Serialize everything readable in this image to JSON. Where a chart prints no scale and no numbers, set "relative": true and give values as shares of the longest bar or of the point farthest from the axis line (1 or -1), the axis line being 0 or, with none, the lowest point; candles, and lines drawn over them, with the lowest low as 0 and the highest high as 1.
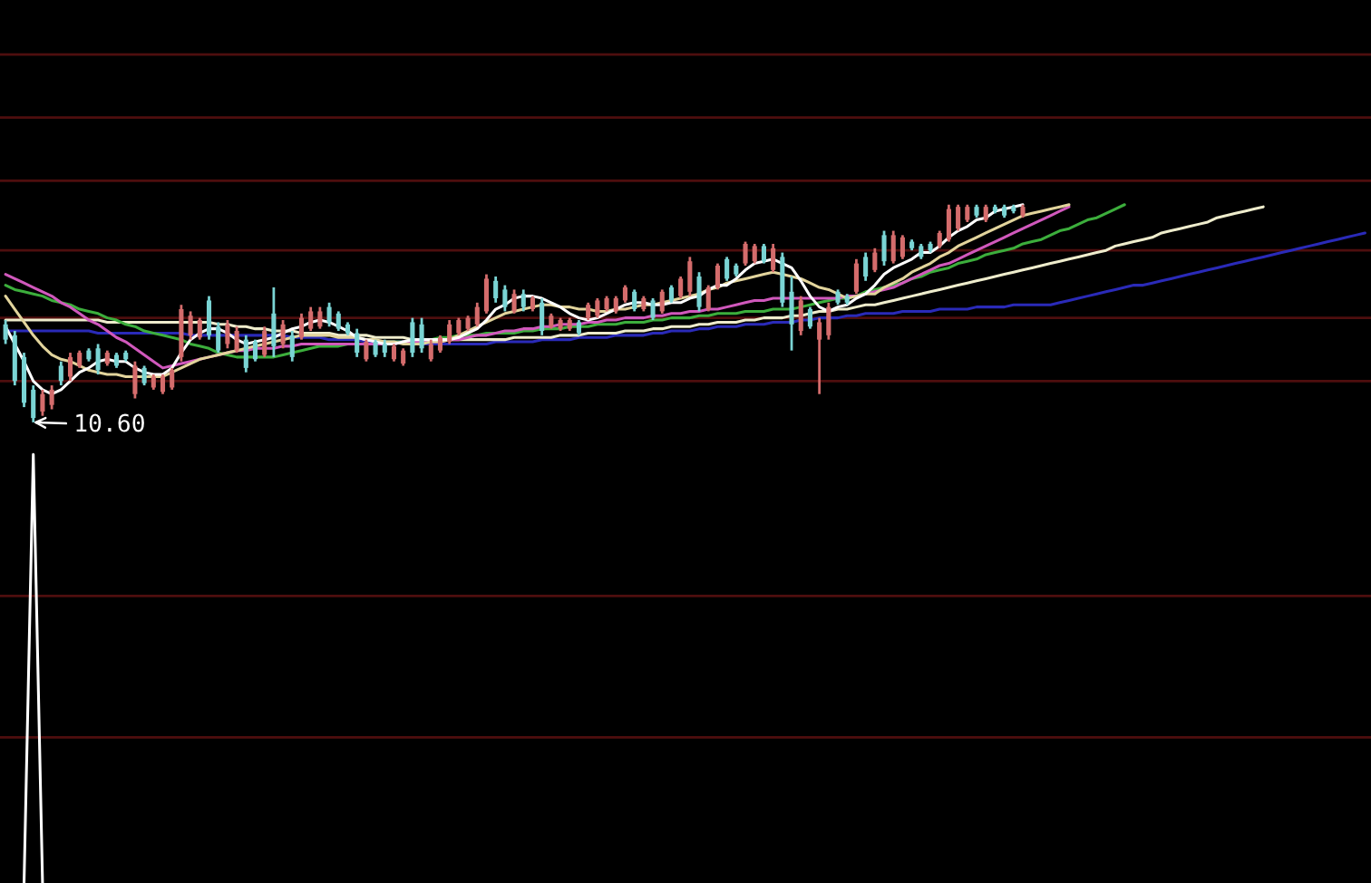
{
  "chart_data": [
    {
      "type": "candlestick",
      "relative": true,
      "categories": [
        null,
        null,
        null,
        null,
        null,
        null,
        null,
        null,
        null,
        null,
        null,
        null,
        null,
        null,
        null,
        null,
        null,
        null,
        null,
        null,
        null,
        null,
        null,
        null,
        null,
        null,
        null,
        null,
        null,
        null,
        null,
        null,
        null,
        null,
        null,
        null,
        null,
        null,
        null,
        null,
        null,
        null,
        null,
        null,
        null,
        null,
        null,
        null,
        null,
        null,
        null,
        null,
        null,
        null,
        null,
        null,
        null,
        null,
        null,
        null,
        null,
        null,
        null,
        null,
        null,
        null,
        null,
        null,
        null,
        null,
        null,
        null,
        null,
        null,
        null,
        null,
        null,
        null,
        null,
        null,
        null,
        null,
        null,
        null,
        null,
        null,
        null,
        null,
        null,
        null,
        null,
        null,
        null,
        null,
        null,
        null,
        null,
        null,
        null,
        null,
        null,
        null,
        null,
        null,
        null,
        null,
        null,
        null,
        null,
        null,
        null,
        null,
        null,
        null,
        null,
        null,
        null,
        null,
        null,
        null,
        null,
        null,
        null,
        null,
        null,
        null,
        null,
        null,
        null,
        null,
        null,
        null,
        null,
        null,
        null,
        null,
        null,
        null,
        null,
        null,
        null,
        null,
        null,
        null,
        null,
        null,
        null,
        null
      ],
      "ohlc": [
        [
          0.45,
          0.47,
          0.36,
          0.38
        ],
        [
          0.4,
          0.42,
          0.17,
          0.19
        ],
        [
          0.3,
          0.32,
          0.07,
          0.09
        ],
        [
          0.15,
          0.17,
          0,
          0.02
        ],
        [
          0.05,
          0.15,
          0.03,
          0.13
        ],
        [
          0.08,
          0.17,
          0.06,
          0.15
        ],
        [
          0.26,
          0.28,
          0.17,
          0.19
        ],
        [
          0.21,
          0.32,
          0.19,
          0.3
        ],
        [
          0.26,
          0.33,
          0.25,
          0.32
        ],
        [
          0.33,
          0.34,
          0.28,
          0.29
        ],
        [
          0.34,
          0.36,
          0.22,
          0.24
        ],
        [
          0.27,
          0.33,
          0.26,
          0.32
        ],
        [
          0.31,
          0.32,
          0.25,
          0.26
        ],
        [
          0.32,
          0.33,
          0.28,
          0.29
        ],
        [
          0.13,
          0.28,
          0.11,
          0.26
        ],
        [
          0.25,
          0.26,
          0.17,
          0.18
        ],
        [
          0.16,
          0.22,
          0.15,
          0.21
        ],
        [
          0.14,
          0.22,
          0.13,
          0.21
        ],
        [
          0.16,
          0.25,
          0.15,
          0.24
        ],
        [
          0.3,
          0.54,
          0.28,
          0.52
        ],
        [
          0.4,
          0.51,
          0.38,
          0.49
        ],
        [
          0.39,
          0.48,
          0.38,
          0.47
        ],
        [
          0.56,
          0.58,
          0.38,
          0.4
        ],
        [
          0.44,
          0.46,
          0.32,
          0.33
        ],
        [
          0.36,
          0.47,
          0.34,
          0.45
        ],
        [
          0.33,
          0.44,
          0.32,
          0.42
        ],
        [
          0.38,
          0.4,
          0.23,
          0.25
        ],
        [
          0.37,
          0.38,
          0.28,
          0.29
        ],
        [
          0.31,
          0.44,
          0.3,
          0.42
        ],
        [
          0.5,
          0.62,
          0.3,
          0.35
        ],
        [
          0.36,
          0.47,
          0.34,
          0.45
        ],
        [
          0.4,
          0.42,
          0.28,
          0.3
        ],
        [
          0.39,
          0.5,
          0.38,
          0.48
        ],
        [
          0.43,
          0.53,
          0.42,
          0.51
        ],
        [
          0.44,
          0.53,
          0.43,
          0.51
        ],
        [
          0.53,
          0.55,
          0.44,
          0.46
        ],
        [
          0.5,
          0.51,
          0.42,
          0.43
        ],
        [
          0.45,
          0.46,
          0.4,
          0.41
        ],
        [
          0.41,
          0.43,
          0.3,
          0.32
        ],
        [
          0.29,
          0.38,
          0.28,
          0.37
        ],
        [
          0.37,
          0.38,
          0.3,
          0.31
        ],
        [
          0.36,
          0.38,
          0.3,
          0.32
        ],
        [
          0.29,
          0.36,
          0.28,
          0.35
        ],
        [
          0.27,
          0.34,
          0.26,
          0.33
        ],
        [
          0.46,
          0.48,
          0.3,
          0.32
        ],
        [
          0.45,
          0.48,
          0.32,
          0.34
        ],
        [
          0.29,
          0.38,
          0.28,
          0.36
        ],
        [
          0.33,
          0.4,
          0.32,
          0.39
        ],
        [
          0.37,
          0.47,
          0.36,
          0.45
        ],
        [
          0.41,
          0.48,
          0.4,
          0.47
        ],
        [
          0.43,
          0.49,
          0.42,
          0.48
        ],
        [
          0.45,
          0.55,
          0.44,
          0.53
        ],
        [
          0.51,
          0.68,
          0.5,
          0.66
        ],
        [
          0.65,
          0.67,
          0.55,
          0.57
        ],
        [
          0.61,
          0.63,
          0.51,
          0.53
        ],
        [
          0.51,
          0.61,
          0.5,
          0.59
        ],
        [
          0.59,
          0.61,
          0.51,
          0.53
        ],
        [
          0.52,
          0.58,
          0.51,
          0.57
        ],
        [
          0.55,
          0.57,
          0.4,
          0.42
        ],
        [
          0.44,
          0.5,
          0.43,
          0.49
        ],
        [
          0.43,
          0.48,
          0.42,
          0.47
        ],
        [
          0.43,
          0.48,
          0.42,
          0.47
        ],
        [
          0.46,
          0.47,
          0.4,
          0.41
        ],
        [
          0.48,
          0.55,
          0.47,
          0.54
        ],
        [
          0.49,
          0.57,
          0.48,
          0.56
        ],
        [
          0.52,
          0.58,
          0.51,
          0.57
        ],
        [
          0.51,
          0.58,
          0.5,
          0.57
        ],
        [
          0.56,
          0.63,
          0.55,
          0.62
        ],
        [
          0.6,
          0.61,
          0.51,
          0.52
        ],
        [
          0.52,
          0.58,
          0.51,
          0.57
        ],
        [
          0.56,
          0.57,
          0.47,
          0.48
        ],
        [
          0.51,
          0.61,
          0.5,
          0.6
        ],
        [
          0.62,
          0.63,
          0.55,
          0.56
        ],
        [
          0.58,
          0.67,
          0.57,
          0.66
        ],
        [
          0.6,
          0.76,
          0.58,
          0.74
        ],
        [
          0.67,
          0.69,
          0.51,
          0.53
        ],
        [
          0.52,
          0.63,
          0.51,
          0.62
        ],
        [
          0.62,
          0.73,
          0.61,
          0.72
        ],
        [
          0.75,
          0.76,
          0.65,
          0.66
        ],
        [
          0.72,
          0.73,
          0.67,
          0.68
        ],
        [
          0.73,
          0.83,
          0.72,
          0.82
        ],
        [
          0.74,
          0.82,
          0.73,
          0.81
        ],
        [
          0.81,
          0.82,
          0.73,
          0.74
        ],
        [
          0.7,
          0.82,
          0.69,
          0.8
        ],
        [
          0.76,
          0.78,
          0.53,
          0.55
        ],
        [
          0.6,
          0.67,
          0.33,
          0.45
        ],
        [
          0.42,
          0.58,
          0.4,
          0.56
        ],
        [
          0.52,
          0.53,
          0.43,
          0.44
        ],
        [
          0.38,
          0.48,
          0.13,
          0.46
        ],
        [
          0.4,
          0.55,
          0.38,
          0.53
        ],
        [
          0.6,
          0.61,
          0.54,
          0.55
        ],
        [
          0.58,
          0.59,
          0.54,
          0.55
        ],
        [
          0.6,
          0.75,
          0.59,
          0.73
        ],
        [
          0.76,
          0.78,
          0.65,
          0.67
        ],
        [
          0.7,
          0.8,
          0.69,
          0.78
        ],
        [
          0.86,
          0.88,
          0.72,
          0.74
        ],
        [
          0.74,
          0.88,
          0.73,
          0.86
        ],
        [
          0.76,
          0.86,
          0.75,
          0.85
        ],
        [
          0.83,
          0.84,
          0.79,
          0.8
        ],
        [
          0.81,
          0.82,
          0.75,
          0.76
        ],
        [
          0.82,
          0.83,
          0.78,
          0.79
        ],
        [
          0.81,
          0.88,
          0.8,
          0.87
        ],
        [
          0.84,
          1,
          0.83,
          0.98
        ],
        [
          0.89,
          1,
          0.88,
          0.99
        ],
        [
          0.93,
          1,
          0.92,
          0.99
        ],
        [
          0.99,
          1,
          0.94,
          0.95
        ],
        [
          0.93,
          1,
          0.92,
          0.99
        ],
        [
          0.99,
          1,
          0.96,
          0.97
        ],
        [
          0.99,
          1,
          0.94,
          0.95
        ],
        [
          0.99,
          1,
          0.96,
          0.97
        ],
        [
          0.95,
          1,
          0.94,
          0.99
        ],
        null,
        null,
        null,
        null,
        null,
        null,
        null,
        null,
        null,
        null,
        null,
        null,
        null,
        null,
        null,
        null,
        null,
        null,
        null,
        null,
        null,
        null,
        null,
        null,
        null,
        null,
        null,
        null,
        null,
        null,
        null,
        null,
        null,
        null,
        null,
        null,
        null
      ],
      "colors": [
        "#7ad4d4",
        "#7ad4d4",
        "#7ad4d4",
        "#7ad4d4",
        "#d46c6c",
        "#d46c6c",
        "#7ad4d4",
        "#d46c6c",
        "#d46c6c",
        "#7ad4d4",
        "#7ad4d4",
        "#d46c6c",
        "#7ad4d4",
        "#7ad4d4",
        "#d46c6c",
        "#7ad4d4",
        "#d46c6c",
        "#d46c6c",
        "#d46c6c",
        "#d46c6c",
        "#d46c6c",
        "#d46c6c",
        "#7ad4d4",
        "#7ad4d4",
        "#d46c6c",
        "#d46c6c",
        "#7ad4d4",
        "#7ad4d4",
        "#d46c6c",
        "#7ad4d4",
        "#d46c6c",
        "#7ad4d4",
        "#d46c6c",
        "#d46c6c",
        "#d46c6c",
        "#7ad4d4",
        "#7ad4d4",
        "#7ad4d4",
        "#7ad4d4",
        "#d46c6c",
        "#7ad4d4",
        "#7ad4d4",
        "#d46c6c",
        "#d46c6c",
        "#7ad4d4",
        "#7ad4d4",
        "#d46c6c",
        "#d46c6c",
        "#d46c6c",
        "#d46c6c",
        "#d46c6c",
        "#d46c6c",
        "#d46c6c",
        "#7ad4d4",
        "#7ad4d4",
        "#d46c6c",
        "#7ad4d4",
        "#d46c6c",
        "#7ad4d4",
        "#d46c6c",
        "#d46c6c",
        "#d46c6c",
        "#7ad4d4",
        "#d46c6c",
        "#d46c6c",
        "#d46c6c",
        "#d46c6c",
        "#d46c6c",
        "#7ad4d4",
        "#d46c6c",
        "#7ad4d4",
        "#d46c6c",
        "#7ad4d4",
        "#d46c6c",
        "#d46c6c",
        "#7ad4d4",
        "#d46c6c",
        "#d46c6c",
        "#7ad4d4",
        "#7ad4d4",
        "#d46c6c",
        "#d46c6c",
        "#7ad4d4",
        "#d46c6c",
        "#7ad4d4",
        "#7ad4d4",
        "#d46c6c",
        "#7ad4d4",
        "#d46c6c",
        "#d46c6c",
        "#7ad4d4",
        "#7ad4d4",
        "#d46c6c",
        "#7ad4d4",
        "#d46c6c",
        "#7ad4d4",
        "#d46c6c",
        "#d46c6c",
        "#7ad4d4",
        "#7ad4d4",
        "#7ad4d4",
        "#d46c6c",
        "#d46c6c",
        "#d46c6c",
        "#d46c6c",
        "#7ad4d4",
        "#d46c6c",
        "#7ad4d4",
        "#7ad4d4",
        "#7ad4d4",
        "#d46c6c",
        null,
        null,
        null,
        null,
        null,
        null,
        null,
        null,
        null,
        null,
        null,
        null,
        null,
        null,
        null,
        null,
        null,
        null,
        null,
        null,
        null,
        null,
        null,
        null,
        null,
        null,
        null,
        null,
        null,
        null,
        null,
        null,
        null,
        null,
        null,
        null,
        null
      ],
      "series": [
        {
          "type": "line",
          "color": "#2a2ab8",
          "values": [
            0.42,
            0.42,
            0.42,
            0.42,
            0.42,
            0.42,
            0.42,
            0.42,
            0.42,
            0.42,
            0.41,
            0.41,
            0.41,
            0.41,
            0.41,
            0.41,
            0.41,
            0.41,
            0.41,
            0.41,
            0.4,
            0.4,
            0.4,
            0.4,
            0.4,
            0.4,
            0.4,
            0.4,
            0.4,
            0.4,
            0.4,
            0.39,
            0.39,
            0.39,
            0.39,
            0.38,
            0.38,
            0.38,
            0.38,
            0.37,
            0.37,
            0.37,
            0.37,
            0.37,
            0.37,
            0.36,
            0.36,
            0.36,
            0.36,
            0.36,
            0.36,
            0.36,
            0.36,
            0.37,
            0.37,
            0.37,
            0.37,
            0.37,
            0.38,
            0.38,
            0.38,
            0.38,
            0.39,
            0.39,
            0.39,
            0.39,
            0.4,
            0.4,
            0.4,
            0.4,
            0.41,
            0.41,
            0.42,
            0.42,
            0.42,
            0.43,
            0.43,
            0.44,
            0.44,
            0.44,
            0.45,
            0.45,
            0.45,
            0.46,
            0.46,
            0.46,
            0.47,
            0.47,
            0.48,
            0.48,
            0.48,
            0.49,
            0.49,
            0.5,
            0.5,
            0.5,
            0.5,
            0.51,
            0.51,
            0.51,
            0.51,
            0.52,
            0.52,
            0.52,
            0.52,
            0.53,
            0.53,
            0.53,
            0.53,
            0.54,
            0.54,
            0.54,
            0.54,
            0.54,
            0.55,
            0.56,
            0.57,
            0.58,
            0.59,
            0.6,
            0.61,
            0.62,
            0.63,
            0.63,
            0.64,
            0.65,
            0.66,
            0.67,
            0.68,
            0.69,
            0.7,
            0.71,
            0.72,
            0.73,
            0.74,
            0.75,
            0.76,
            0.77,
            0.78,
            0.79,
            0.8,
            0.81,
            0.82,
            0.83,
            0.84,
            0.85,
            0.86,
            0.87
          ]
        },
        {
          "type": "line",
          "color": "#eeeccc",
          "values": [
            0.47,
            0.47,
            0.47,
            0.47,
            0.47,
            0.47,
            0.47,
            0.47,
            0.47,
            0.47,
            0.47,
            0.46,
            0.46,
            0.46,
            0.46,
            0.46,
            0.46,
            0.46,
            0.46,
            0.46,
            0.46,
            0.46,
            0.46,
            0.45,
            0.45,
            0.44,
            0.44,
            0.43,
            0.43,
            0.42,
            0.42,
            0.42,
            0.41,
            0.41,
            0.41,
            0.41,
            0.4,
            0.4,
            0.4,
            0.4,
            0.39,
            0.39,
            0.39,
            0.39,
            0.38,
            0.38,
            0.38,
            0.38,
            0.38,
            0.38,
            0.38,
            0.38,
            0.38,
            0.38,
            0.38,
            0.39,
            0.39,
            0.39,
            0.39,
            0.39,
            0.4,
            0.4,
            0.4,
            0.41,
            0.41,
            0.41,
            0.41,
            0.42,
            0.42,
            0.42,
            0.43,
            0.43,
            0.44,
            0.44,
            0.44,
            0.45,
            0.45,
            0.46,
            0.46,
            0.46,
            0.47,
            0.47,
            0.48,
            0.48,
            0.48,
            0.49,
            0.49,
            0.5,
            0.51,
            0.51,
            0.52,
            0.52,
            0.53,
            0.54,
            0.54,
            0.55,
            0.56,
            0.57,
            0.58,
            0.59,
            0.6,
            0.61,
            0.62,
            0.63,
            0.64,
            0.65,
            0.66,
            0.67,
            0.68,
            0.69,
            0.7,
            0.71,
            0.72,
            0.73,
            0.74,
            0.75,
            0.76,
            0.77,
            0.78,
            0.79,
            0.81,
            0.82,
            0.83,
            0.84,
            0.85,
            0.87,
            0.88,
            0.89,
            0.9,
            0.91,
            0.92,
            0.94,
            0.95,
            0.96,
            0.97,
            0.98,
            0.99,
            null,
            null,
            null,
            null,
            null,
            null,
            null,
            null,
            null,
            null,
            null
          ]
        },
        {
          "type": "line",
          "color": "#3cae3c",
          "values": [
            0.63,
            0.61,
            0.6,
            0.59,
            0.58,
            0.56,
            0.55,
            0.54,
            0.52,
            0.51,
            0.5,
            0.48,
            0.47,
            0.45,
            0.44,
            0.42,
            0.41,
            0.4,
            0.39,
            0.38,
            0.36,
            0.35,
            0.34,
            0.32,
            0.31,
            0.3,
            0.3,
            0.3,
            0.3,
            0.3,
            0.31,
            0.32,
            0.33,
            0.34,
            0.35,
            0.35,
            0.35,
            0.36,
            0.36,
            0.36,
            0.36,
            0.37,
            0.37,
            0.37,
            0.37,
            0.38,
            0.38,
            0.39,
            0.39,
            0.4,
            0.4,
            0.4,
            0.41,
            0.41,
            0.41,
            0.41,
            0.42,
            0.42,
            0.43,
            0.43,
            0.43,
            0.44,
            0.44,
            0.44,
            0.45,
            0.45,
            0.45,
            0.46,
            0.46,
            0.46,
            0.47,
            0.47,
            0.48,
            0.48,
            0.48,
            0.49,
            0.49,
            0.5,
            0.5,
            0.5,
            0.51,
            0.51,
            0.51,
            0.52,
            0.52,
            0.52,
            0.53,
            0.54,
            0.55,
            0.56,
            0.57,
            0.57,
            0.58,
            0.6,
            0.61,
            0.62,
            0.63,
            0.64,
            0.66,
            0.67,
            0.69,
            0.7,
            0.71,
            0.73,
            0.74,
            0.75,
            0.77,
            0.78,
            0.79,
            0.8,
            0.82,
            0.83,
            0.84,
            0.86,
            0.88,
            0.89,
            0.91,
            0.93,
            0.94,
            0.96,
            0.98,
            1.0,
            null,
            null,
            null,
            null,
            null,
            null,
            null,
            null,
            null,
            null,
            null,
            null,
            null,
            null,
            null,
            null,
            null,
            null,
            null,
            null,
            null,
            null,
            null,
            null,
            null,
            null
          ]
        },
        {
          "type": "line",
          "color": "#d058bc",
          "values": [
            0.68,
            0.66,
            0.64,
            0.62,
            0.6,
            0.58,
            0.55,
            0.53,
            0.5,
            0.47,
            0.45,
            0.42,
            0.39,
            0.37,
            0.34,
            0.31,
            0.28,
            0.25,
            0.26,
            0.27,
            0.28,
            0.29,
            0.3,
            0.31,
            0.32,
            0.33,
            0.33,
            0.34,
            0.34,
            0.34,
            0.35,
            0.35,
            0.36,
            0.36,
            0.36,
            0.36,
            0.36,
            0.36,
            0.36,
            0.36,
            0.36,
            0.36,
            0.36,
            0.37,
            0.37,
            0.37,
            0.37,
            0.37,
            0.38,
            0.38,
            0.39,
            0.4,
            0.4,
            0.41,
            0.42,
            0.42,
            0.43,
            0.43,
            0.44,
            0.44,
            0.45,
            0.45,
            0.45,
            0.46,
            0.46,
            0.47,
            0.47,
            0.48,
            0.48,
            0.48,
            0.49,
            0.49,
            0.5,
            0.5,
            0.51,
            0.51,
            0.52,
            0.52,
            0.53,
            0.54,
            0.55,
            0.56,
            0.56,
            0.57,
            0.57,
            0.57,
            0.57,
            0.57,
            0.57,
            0.57,
            0.57,
            0.58,
            0.58,
            0.59,
            0.6,
            0.61,
            0.62,
            0.64,
            0.66,
            0.68,
            0.7,
            0.72,
            0.73,
            0.75,
            0.77,
            0.79,
            0.81,
            0.83,
            0.85,
            0.87,
            0.89,
            0.91,
            0.93,
            0.95,
            0.97,
            0.99,
            null,
            null,
            null,
            null,
            null,
            null,
            null,
            null,
            null,
            null,
            null,
            null,
            null,
            null,
            null,
            null,
            null,
            null,
            null,
            null,
            null,
            null,
            null,
            null,
            null,
            null,
            null,
            null,
            null,
            null,
            null,
            null
          ]
        },
        {
          "type": "line",
          "color": "#e2d49c",
          "values": [
            0.58,
            0.52,
            0.46,
            0.4,
            0.35,
            0.31,
            0.29,
            0.28,
            0.26,
            0.24,
            0.23,
            0.22,
            0.22,
            0.21,
            0.21,
            0.21,
            0.21,
            0.21,
            0.23,
            0.25,
            0.27,
            0.29,
            0.3,
            0.31,
            0.32,
            0.33,
            0.34,
            0.35,
            0.36,
            0.37,
            0.38,
            0.39,
            0.4,
            0.4,
            0.4,
            0.4,
            0.39,
            0.39,
            0.39,
            0.38,
            0.38,
            0.37,
            0.37,
            0.36,
            0.36,
            0.36,
            0.37,
            0.37,
            0.38,
            0.4,
            0.42,
            0.44,
            0.46,
            0.48,
            0.5,
            0.51,
            0.52,
            0.53,
            0.54,
            0.54,
            0.53,
            0.53,
            0.52,
            0.52,
            0.51,
            0.51,
            0.52,
            0.52,
            0.53,
            0.54,
            0.54,
            0.55,
            0.56,
            0.57,
            0.58,
            0.59,
            0.61,
            0.62,
            0.64,
            0.65,
            0.66,
            0.67,
            0.68,
            0.69,
            0.68,
            0.67,
            0.66,
            0.64,
            0.62,
            0.61,
            0.59,
            0.57,
            0.58,
            0.59,
            0.59,
            0.62,
            0.64,
            0.66,
            0.69,
            0.71,
            0.73,
            0.76,
            0.78,
            0.81,
            0.83,
            0.85,
            0.87,
            0.89,
            0.91,
            0.93,
            0.95,
            0.96,
            0.97,
            0.98,
            0.99,
            1.0,
            null,
            null,
            null,
            null,
            null,
            null,
            null,
            null,
            null,
            null,
            null,
            null,
            null,
            null,
            null,
            null,
            null,
            null,
            null,
            null,
            null,
            null,
            null,
            null,
            null,
            null,
            null,
            null,
            null,
            null,
            null,
            null
          ]
        },
        {
          "type": "line",
          "color": "#ffffff",
          "values": [
            0.44,
            0.36,
            0.28,
            0.19,
            0.15,
            0.13,
            0.15,
            0.19,
            0.23,
            0.25,
            0.28,
            0.29,
            0.28,
            0.28,
            0.25,
            0.23,
            0.22,
            0.22,
            0.25,
            0.32,
            0.38,
            0.41,
            0.43,
            0.43,
            0.41,
            0.38,
            0.36,
            0.37,
            0.38,
            0.39,
            0.41,
            0.43,
            0.44,
            0.46,
            0.47,
            0.46,
            0.44,
            0.42,
            0.39,
            0.38,
            0.37,
            0.36,
            0.36,
            0.37,
            0.38,
            0.38,
            0.38,
            0.38,
            0.38,
            0.39,
            0.41,
            0.43,
            0.47,
            0.52,
            0.54,
            0.57,
            0.58,
            0.58,
            0.57,
            0.55,
            0.53,
            0.5,
            0.48,
            0.47,
            0.48,
            0.5,
            0.52,
            0.54,
            0.55,
            0.55,
            0.54,
            0.54,
            0.55,
            0.55,
            0.57,
            0.58,
            0.61,
            0.63,
            0.63,
            0.66,
            0.7,
            0.73,
            0.74,
            0.75,
            0.73,
            0.71,
            0.65,
            0.58,
            0.53,
            0.51,
            0.53,
            0.54,
            0.57,
            0.59,
            0.63,
            0.68,
            0.71,
            0.73,
            0.75,
            0.78,
            0.78,
            0.81,
            0.85,
            0.88,
            0.9,
            0.93,
            0.94,
            0.97,
            0.98,
            0.99,
            1.0,
            null,
            null,
            null,
            null,
            null,
            null,
            null,
            null,
            null,
            null,
            null,
            null,
            null,
            null,
            null,
            null,
            null,
            null,
            null,
            null,
            null,
            null,
            null,
            null,
            null,
            null,
            null,
            null,
            null,
            null,
            null,
            null,
            null,
            null,
            null,
            null,
            null
          ]
        }
      ],
      "ref_lines": [
        {
          "axis": "y",
          "value": 0.19,
          "color": "#4e0e0e"
        },
        {
          "axis": "y",
          "value": 0.48,
          "color": "#4e0e0e"
        },
        {
          "axis": "y",
          "value": 0.79,
          "color": "#4e0e0e"
        },
        {
          "axis": "y",
          "value": 1.11,
          "color": "#4e0e0e"
        },
        {
          "axis": "y",
          "value": 1.4,
          "color": "#4e0e0e"
        },
        {
          "axis": "y",
          "value": 1.69,
          "color": "#4e0e0e"
        }
      ],
      "annotations": [
        "10.60"
      ]
    },
    {
      "type": "line",
      "relative": true,
      "categories": [
        null,
        null,
        null,
        null,
        null,
        null,
        null,
        null,
        null,
        null,
        null,
        null,
        null,
        null,
        null,
        null,
        null,
        null,
        null,
        null,
        null,
        null,
        null,
        null,
        null,
        null,
        null,
        null,
        null,
        null,
        null,
        null,
        null,
        null,
        null,
        null,
        null,
        null,
        null,
        null,
        null,
        null,
        null,
        null,
        null,
        null,
        null,
        null,
        null,
        null,
        null,
        null,
        null,
        null,
        null,
        null,
        null,
        null,
        null,
        null,
        null,
        null,
        null,
        null,
        null,
        null,
        null,
        null,
        null,
        null,
        null,
        null,
        null,
        null,
        null,
        null,
        null,
        null,
        null,
        null,
        null,
        null,
        null,
        null,
        null,
        null,
        null,
        null,
        null,
        null,
        null,
        null,
        null,
        null,
        null,
        null,
        null,
        null,
        null,
        null,
        null,
        null,
        null,
        null,
        null,
        null,
        null,
        null,
        null,
        null,
        null,
        null,
        null,
        null,
        null,
        null,
        null,
        null,
        null,
        null,
        null,
        null,
        null,
        null,
        null,
        null,
        null,
        null,
        null,
        null,
        null,
        null,
        null,
        null,
        null,
        null,
        null,
        null,
        null,
        null,
        null,
        null,
        null,
        null,
        null,
        null,
        null,
        null
      ],
      "series": [
        {
          "color": "#ffffff",
          "values": [
            null,
            null,
            0,
            1,
            0,
            null,
            null,
            null,
            null,
            null,
            null,
            null,
            null,
            null,
            null,
            null,
            null,
            null,
            null,
            null,
            null,
            null,
            null,
            null,
            null,
            null,
            null,
            null,
            null,
            null,
            null,
            null,
            null,
            null,
            null,
            null,
            null,
            null,
            null,
            null,
            null,
            null,
            null,
            null,
            null,
            null,
            null,
            null,
            null,
            null,
            null,
            null,
            null,
            null,
            null,
            null,
            null,
            null,
            null,
            null,
            null,
            null,
            null,
            null,
            null,
            null,
            null,
            null,
            null,
            null,
            null,
            null,
            null,
            null,
            null,
            null,
            null,
            null,
            null,
            null,
            null,
            null,
            null,
            null,
            null,
            null,
            null,
            null,
            null,
            null,
            null,
            null,
            null,
            null,
            null,
            null,
            null,
            null,
            null,
            null,
            null,
            null,
            null,
            null,
            null,
            null,
            null,
            null,
            null,
            null,
            null,
            null,
            null,
            null,
            null,
            null,
            null,
            null,
            null,
            null,
            null,
            null,
            null,
            null,
            null,
            null,
            null,
            null,
            null,
            null,
            null,
            null,
            null,
            null,
            null,
            null,
            null,
            null,
            null,
            null,
            null,
            null,
            null,
            null,
            null,
            null,
            null,
            null
          ]
        }
      ],
      "ref_lines": [
        {
          "axis": "y",
          "value": 0.34,
          "color": "#4e0e0e"
        },
        {
          "axis": "y",
          "value": 0.67,
          "color": "#4e0e0e"
        }
      ]
    }
  ]
}
